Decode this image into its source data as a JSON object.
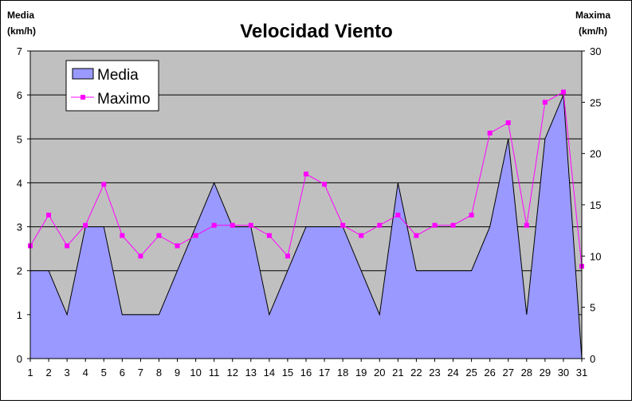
{
  "chart_data": {
    "type": "area",
    "title": "Velocidad Viento",
    "categories": [
      "1",
      "2",
      "3",
      "4",
      "5",
      "6",
      "7",
      "8",
      "9",
      "10",
      "11",
      "12",
      "13",
      "14",
      "15",
      "16",
      "17",
      "18",
      "19",
      "20",
      "21",
      "22",
      "23",
      "24",
      "25",
      "26",
      "27",
      "28",
      "29",
      "30",
      "31"
    ],
    "series": [
      {
        "name": "Media",
        "type": "area",
        "axis": "left",
        "color": "#9999ff",
        "values": [
          2,
          2,
          1,
          3,
          3,
          1,
          1,
          1,
          2,
          3,
          4,
          3,
          3,
          1,
          2,
          3,
          3,
          3,
          2,
          1,
          4,
          2,
          2,
          2,
          2,
          3,
          5,
          1,
          5,
          6,
          0
        ]
      },
      {
        "name": "Maximo",
        "type": "line",
        "axis": "right",
        "color": "#ff00ff",
        "values": [
          11,
          14,
          11,
          13,
          17,
          12,
          10,
          12,
          11,
          12,
          13,
          13,
          13,
          12,
          10,
          18,
          17,
          13,
          12,
          13,
          14,
          12,
          13,
          13,
          14,
          22,
          23,
          13,
          25,
          26,
          9
        ]
      }
    ],
    "y_left": {
      "label_line1": "Media",
      "label_line2": "(km/h)",
      "range": [
        0,
        7
      ],
      "ticks": [
        "0",
        "1",
        "2",
        "3",
        "4",
        "5",
        "6",
        "7"
      ]
    },
    "y_right": {
      "label_line1": "Maxima",
      "label_line2": "(km/h)",
      "range": [
        0,
        30
      ],
      "ticks": [
        "0",
        "5",
        "10",
        "15",
        "20",
        "25",
        "30"
      ]
    },
    "plot_background": "#c0c0c0",
    "grid": true,
    "legend_position": "top-left"
  }
}
